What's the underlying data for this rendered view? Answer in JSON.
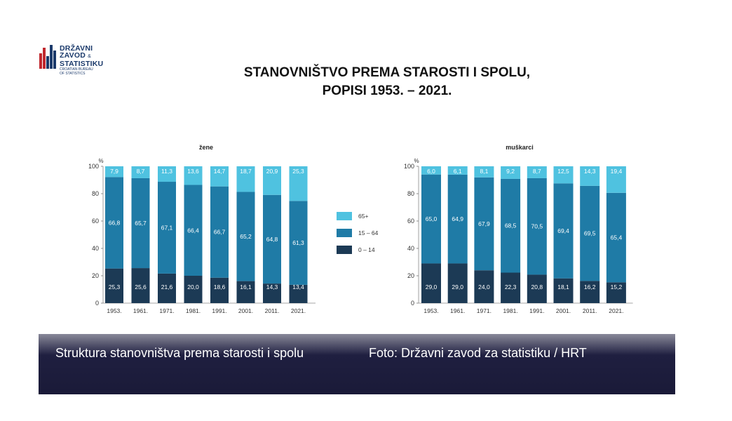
{
  "logo": {
    "lines": [
      "DRŽAVNI",
      "ZAVOD",
      "STATISTIKU"
    ],
    "amp": "&",
    "sub_lines": [
      "CROATIAN BUREAU",
      "OF STATISTICS"
    ]
  },
  "title": {
    "line1": "STANOVNIŠTVO PREMA STAROSTI I SPOLU,",
    "line2": "POPISI 1953. – 2021."
  },
  "colors": {
    "age_0_14": "#1c3a55",
    "age_15_64": "#1f7ba6",
    "age_65_plus": "#4fc2e0"
  },
  "legend": [
    {
      "label": "65+",
      "color": "#4fc2e0"
    },
    {
      "label": "15 – 64",
      "color": "#1f7ba6"
    },
    {
      "label": "0 – 14",
      "color": "#1c3a55"
    }
  ],
  "chart_data": [
    {
      "type": "bar",
      "stacked": true,
      "title": "žene",
      "ylabel": "%",
      "ylim": [
        0,
        100
      ],
      "yticks": [
        0,
        20,
        40,
        60,
        80,
        100
      ],
      "categories": [
        "1953.",
        "1961.",
        "1971.",
        "1981.",
        "1991.",
        "2001.",
        "2011.",
        "2021."
      ],
      "series": [
        {
          "name": "0 – 14",
          "values": [
            25.3,
            25.6,
            21.6,
            20.0,
            18.6,
            16.1,
            14.3,
            13.4
          ],
          "labels": [
            "25,3",
            "25,6",
            "21,6",
            "20,0",
            "18,6",
            "16,1",
            "14,3",
            "13,4"
          ]
        },
        {
          "name": "15 – 64",
          "values": [
            66.8,
            65.7,
            67.1,
            66.4,
            66.7,
            65.2,
            64.8,
            61.3
          ],
          "labels": [
            "66,8",
            "65,7",
            "67,1",
            "66,4",
            "66,7",
            "65,2",
            "64,8",
            "61,3"
          ]
        },
        {
          "name": "65+",
          "values": [
            7.9,
            8.7,
            11.3,
            13.6,
            14.7,
            18.7,
            20.9,
            25.3
          ],
          "labels": [
            "7,9",
            "8,7",
            "11,3",
            "13,6",
            "14,7",
            "18,7",
            "20,9",
            "25,3"
          ]
        }
      ]
    },
    {
      "type": "bar",
      "stacked": true,
      "title": "muškarci",
      "ylabel": "%",
      "ylim": [
        0,
        100
      ],
      "yticks": [
        0,
        20,
        40,
        60,
        80,
        100
      ],
      "categories": [
        "1953.",
        "1961.",
        "1971.",
        "1981.",
        "1991.",
        "2001.",
        "2011.",
        "2021."
      ],
      "series": [
        {
          "name": "0 – 14",
          "values": [
            29.0,
            29.0,
            24.0,
            22.3,
            20.8,
            18.1,
            16.2,
            15.2
          ],
          "labels": [
            "29,0",
            "29,0",
            "24,0",
            "22,3",
            "20,8",
            "18,1",
            "16,2",
            "15,2"
          ]
        },
        {
          "name": "15 – 64",
          "values": [
            65.0,
            64.9,
            67.9,
            68.5,
            70.5,
            69.4,
            69.5,
            65.4
          ],
          "labels": [
            "65,0",
            "64,9",
            "67,9",
            "68,5",
            "70,5",
            "69,4",
            "69,5",
            "65,4"
          ]
        },
        {
          "name": "65+",
          "values": [
            6.0,
            6.1,
            8.1,
            9.2,
            8.7,
            12.5,
            14.3,
            19.4
          ],
          "labels": [
            "6,0",
            "6,1",
            "8,1",
            "9,2",
            "8,7",
            "12,5",
            "14,3",
            "19,4"
          ]
        }
      ]
    }
  ],
  "caption": {
    "text": "Struktura stanovništva prema starosti i spolu",
    "credit": "Foto: Državni zavod za statistiku / HRT"
  }
}
